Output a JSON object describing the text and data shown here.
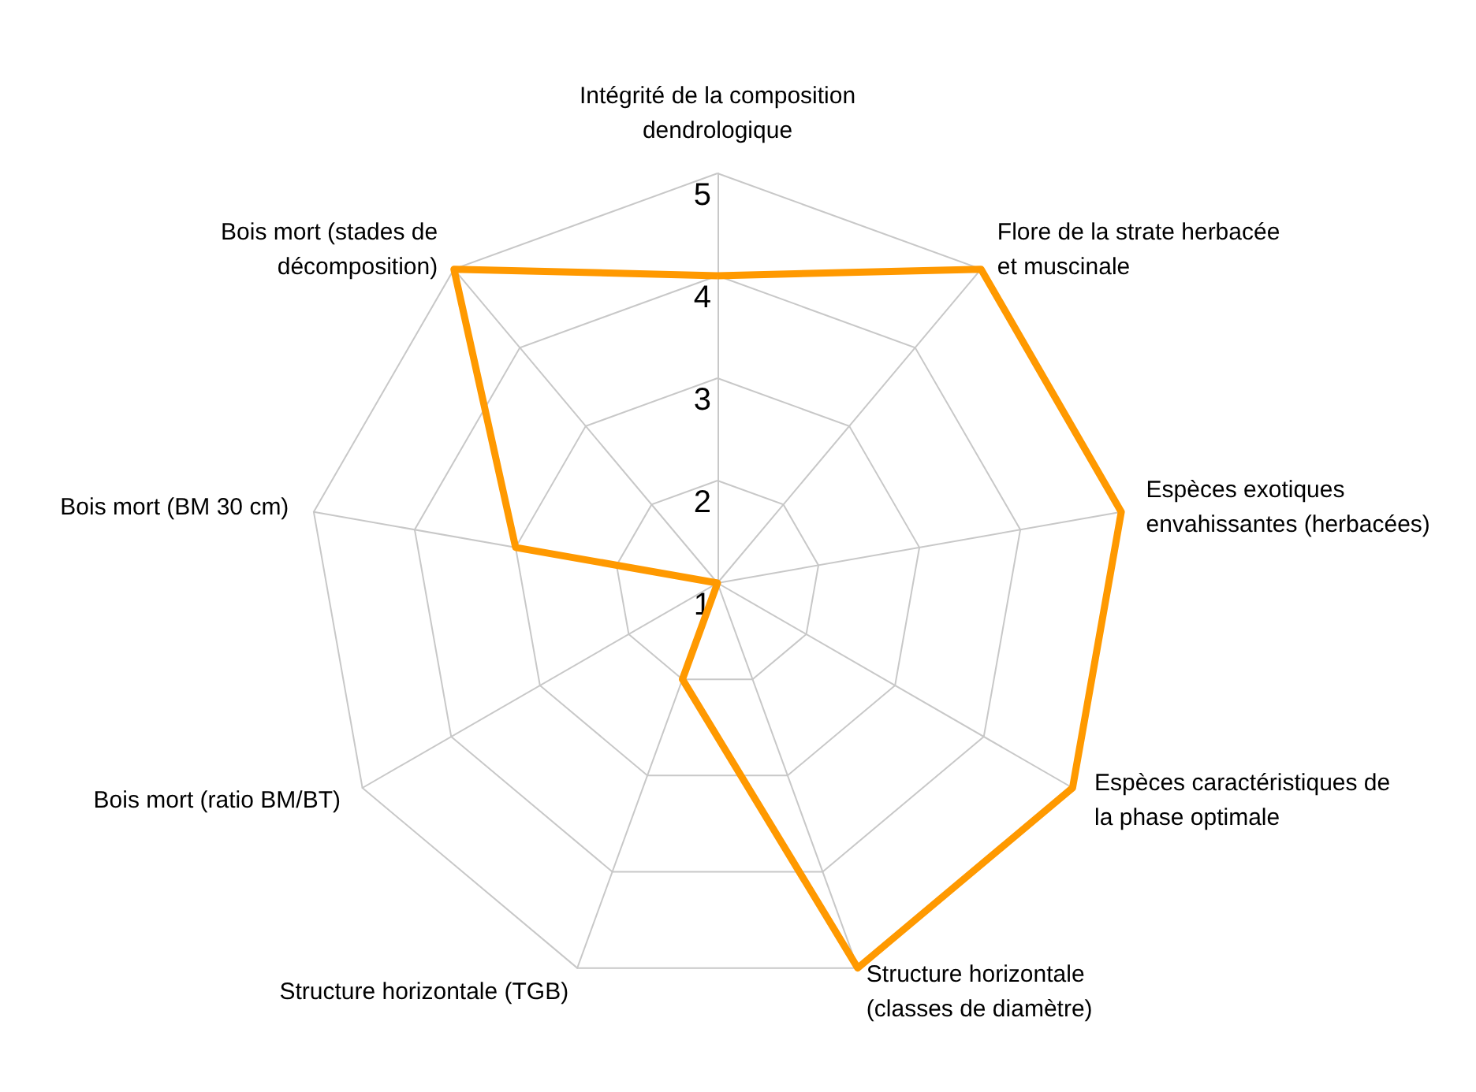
{
  "chart_data": {
    "type": "radar",
    "categories": [
      "Intégrité de la composition dendrologique",
      "Flore de la strate herbacée et muscinale",
      "Espèces exotiques envahissantes (herbacées)",
      "Espèces caractéristiques de la phase optimale",
      "Structure horizontale (classes de diamètre)",
      "Structure horizontale (TGB)",
      "Bois mort (ratio BM/BT)",
      "Bois mort (BM 30 cm)",
      "Bois mort (stades de décomposition)"
    ],
    "series": [
      {
        "color": "#ff9900",
        "values": [
          4,
          5,
          5,
          5,
          5,
          2,
          1,
          3,
          5
        ]
      }
    ],
    "ylim": [
      1,
      5
    ],
    "yticks": [
      1,
      2,
      3,
      4,
      5
    ],
    "grid": true,
    "marker": "none"
  }
}
